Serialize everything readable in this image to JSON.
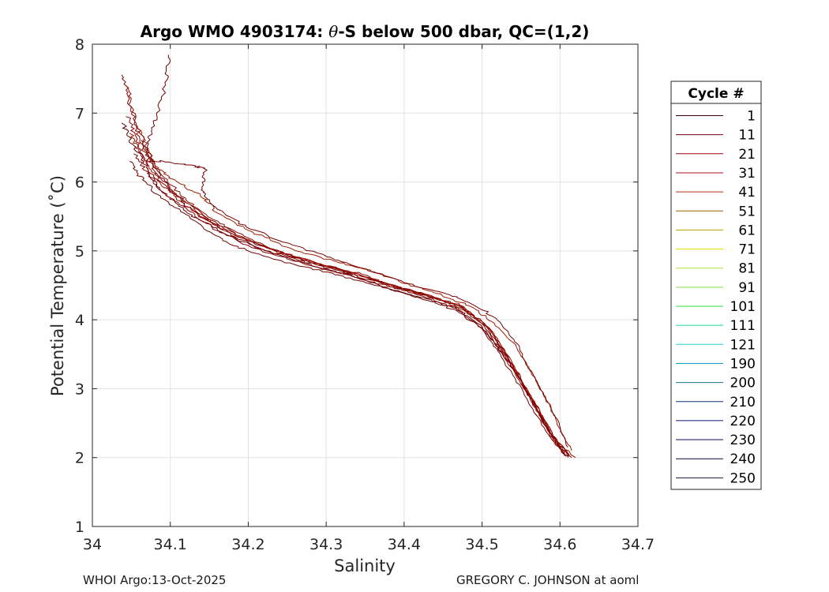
{
  "chart_data": {
    "type": "line",
    "title_prefix": "Argo WMO 4903174: ",
    "title_symbol": "θ",
    "title_suffix": "-S below 500 dbar,  QC=(1,2)",
    "xlabel": "Salinity",
    "ylabel": "Potential Temperature (˚C)",
    "xlim": [
      34.0,
      34.7
    ],
    "ylim": [
      1,
      8
    ],
    "x_ticks": [
      34.0,
      34.1,
      34.2,
      34.3,
      34.4,
      34.5,
      34.6,
      34.7
    ],
    "x_tick_labels": [
      "34",
      "34.1",
      "34.2",
      "34.3",
      "34.4",
      "34.5",
      "34.6",
      "34.7"
    ],
    "y_ticks": [
      1,
      2,
      3,
      4,
      5,
      6,
      7,
      8
    ],
    "y_tick_labels": [
      "1",
      "2",
      "3",
      "4",
      "5",
      "6",
      "7",
      "8"
    ],
    "grid": true,
    "legend_title": "Cycle #",
    "legend_position": "right",
    "series": [
      {
        "name": "1",
        "color": "#5a0008",
        "points": [
          [
            34.04,
            6.85
          ],
          [
            34.05,
            6.55
          ],
          [
            34.065,
            6.3
          ],
          [
            34.08,
            6.0
          ],
          [
            34.1,
            5.75
          ],
          [
            34.13,
            5.5
          ],
          [
            34.17,
            5.25
          ],
          [
            34.22,
            5.0
          ],
          [
            34.28,
            4.8
          ],
          [
            34.33,
            4.65
          ],
          [
            34.38,
            4.45
          ],
          [
            34.43,
            4.3
          ],
          [
            34.47,
            4.15
          ],
          [
            34.5,
            3.9
          ],
          [
            34.52,
            3.6
          ],
          [
            34.54,
            3.3
          ],
          [
            34.56,
            2.9
          ],
          [
            34.58,
            2.5
          ],
          [
            34.6,
            2.15
          ],
          [
            34.61,
            2.0
          ]
        ]
      },
      {
        "name": "11",
        "color": "#6e0008",
        "points": [
          [
            34.1,
            7.85
          ],
          [
            34.095,
            7.5
          ],
          [
            34.085,
            7.0
          ],
          [
            34.075,
            6.7
          ],
          [
            34.07,
            6.4
          ],
          [
            34.085,
            6.1
          ],
          [
            34.11,
            5.8
          ],
          [
            34.15,
            5.45
          ],
          [
            34.2,
            5.15
          ],
          [
            34.26,
            4.9
          ],
          [
            34.31,
            4.75
          ],
          [
            34.37,
            4.55
          ],
          [
            34.42,
            4.38
          ],
          [
            34.46,
            4.25
          ],
          [
            34.5,
            3.95
          ],
          [
            34.525,
            3.55
          ],
          [
            34.545,
            3.2
          ],
          [
            34.565,
            2.8
          ],
          [
            34.585,
            2.4
          ],
          [
            34.605,
            2.05
          ]
        ]
      },
      {
        "name": "21",
        "color": "#800000",
        "points": [
          [
            34.04,
            7.55
          ],
          [
            34.045,
            7.25
          ],
          [
            34.055,
            6.9
          ],
          [
            34.06,
            6.6
          ],
          [
            34.075,
            6.25
          ],
          [
            34.095,
            5.95
          ],
          [
            34.12,
            5.65
          ],
          [
            34.16,
            5.35
          ],
          [
            34.21,
            5.05
          ],
          [
            34.27,
            4.85
          ],
          [
            34.32,
            4.7
          ],
          [
            34.38,
            4.5
          ],
          [
            34.43,
            4.35
          ],
          [
            34.47,
            4.2
          ],
          [
            34.505,
            3.9
          ],
          [
            34.53,
            3.5
          ],
          [
            34.55,
            3.1
          ],
          [
            34.57,
            2.7
          ],
          [
            34.59,
            2.3
          ],
          [
            34.615,
            2.0
          ]
        ]
      },
      {
        "name": "31",
        "color": "#8b0a00",
        "points": [
          [
            34.045,
            7.4
          ],
          [
            34.05,
            7.1
          ],
          [
            34.06,
            6.75
          ],
          [
            34.07,
            6.45
          ],
          [
            34.085,
            6.15
          ],
          [
            34.11,
            5.85
          ],
          [
            34.14,
            5.55
          ],
          [
            34.18,
            5.3
          ],
          [
            34.23,
            5.02
          ],
          [
            34.29,
            4.82
          ],
          [
            34.34,
            4.68
          ],
          [
            34.39,
            4.48
          ],
          [
            34.44,
            4.32
          ],
          [
            34.475,
            4.18
          ],
          [
            34.51,
            3.88
          ],
          [
            34.532,
            3.48
          ],
          [
            34.552,
            3.08
          ],
          [
            34.572,
            2.68
          ],
          [
            34.592,
            2.28
          ],
          [
            34.612,
            2.02
          ]
        ]
      },
      {
        "name": "41",
        "color": "#941400",
        "points": [
          [
            34.05,
            6.7
          ],
          [
            34.06,
            6.45
          ],
          [
            34.075,
            6.2
          ],
          [
            34.09,
            5.95
          ],
          [
            34.12,
            5.7
          ],
          [
            34.15,
            5.45
          ],
          [
            34.19,
            5.2
          ],
          [
            34.24,
            4.98
          ],
          [
            34.3,
            4.78
          ],
          [
            34.35,
            4.62
          ],
          [
            34.4,
            4.45
          ],
          [
            34.445,
            4.3
          ],
          [
            34.48,
            4.12
          ],
          [
            34.512,
            3.85
          ],
          [
            34.535,
            3.45
          ],
          [
            34.555,
            3.05
          ],
          [
            34.575,
            2.65
          ],
          [
            34.595,
            2.25
          ],
          [
            34.62,
            2.0
          ]
        ]
      },
      {
        "name": "51",
        "color": "#9b1e00",
        "points": [
          [
            34.06,
            6.8
          ],
          [
            34.07,
            6.5
          ],
          [
            34.08,
            6.25
          ],
          [
            34.1,
            6.05
          ],
          [
            34.14,
            5.8
          ],
          [
            34.16,
            5.55
          ],
          [
            34.2,
            5.3
          ],
          [
            34.25,
            5.05
          ],
          [
            34.31,
            4.85
          ],
          [
            34.36,
            4.7
          ],
          [
            34.41,
            4.5
          ],
          [
            34.45,
            4.35
          ],
          [
            34.485,
            4.2
          ],
          [
            34.515,
            3.95
          ],
          [
            34.545,
            3.6
          ],
          [
            34.565,
            3.2
          ],
          [
            34.585,
            2.8
          ],
          [
            34.6,
            2.4
          ],
          [
            34.615,
            2.1
          ]
        ]
      },
      {
        "name": "61",
        "color": "#7a0000",
        "points": [
          [
            34.065,
            6.6
          ],
          [
            34.075,
            6.3
          ],
          [
            34.09,
            6.3
          ],
          [
            34.12,
            6.25
          ],
          [
            34.145,
            6.2
          ],
          [
            34.14,
            5.9
          ],
          [
            34.15,
            5.7
          ],
          [
            34.19,
            5.4
          ],
          [
            34.24,
            5.15
          ],
          [
            34.3,
            4.92
          ],
          [
            34.355,
            4.72
          ],
          [
            34.405,
            4.52
          ],
          [
            34.455,
            4.38
          ],
          [
            34.49,
            4.22
          ],
          [
            34.52,
            4.0
          ],
          [
            34.545,
            3.65
          ],
          [
            34.56,
            3.3
          ],
          [
            34.58,
            2.9
          ],
          [
            34.598,
            2.5
          ],
          [
            34.61,
            2.15
          ]
        ]
      },
      {
        "name": "71",
        "color": "#700000",
        "points": [
          [
            34.05,
            6.3
          ],
          [
            34.06,
            6.1
          ],
          [
            34.08,
            5.85
          ],
          [
            34.11,
            5.6
          ],
          [
            34.14,
            5.35
          ],
          [
            34.175,
            5.1
          ],
          [
            34.22,
            4.92
          ],
          [
            34.28,
            4.75
          ],
          [
            34.33,
            4.6
          ],
          [
            34.38,
            4.45
          ],
          [
            34.425,
            4.3
          ],
          [
            34.465,
            4.15
          ],
          [
            34.5,
            3.88
          ],
          [
            34.522,
            3.5
          ],
          [
            34.545,
            3.1
          ],
          [
            34.565,
            2.7
          ],
          [
            34.59,
            2.25
          ],
          [
            34.608,
            2.02
          ]
        ]
      },
      {
        "name": "81",
        "color": "#850000",
        "points": [
          [
            34.055,
            6.4
          ],
          [
            34.07,
            6.15
          ],
          [
            34.085,
            5.9
          ],
          [
            34.115,
            5.65
          ],
          [
            34.145,
            5.4
          ],
          [
            34.185,
            5.15
          ],
          [
            34.23,
            4.95
          ],
          [
            34.285,
            4.77
          ],
          [
            34.335,
            4.62
          ],
          [
            34.385,
            4.47
          ],
          [
            34.43,
            4.32
          ],
          [
            34.468,
            4.17
          ],
          [
            34.502,
            3.86
          ],
          [
            34.525,
            3.52
          ],
          [
            34.548,
            3.12
          ],
          [
            34.568,
            2.72
          ],
          [
            34.588,
            2.32
          ],
          [
            34.606,
            2.05
          ]
        ]
      },
      {
        "name": "91",
        "color": "#900000",
        "points": [
          [
            34.045,
            6.95
          ],
          [
            34.055,
            6.65
          ],
          [
            34.065,
            6.35
          ],
          [
            34.078,
            6.08
          ],
          [
            34.105,
            5.8
          ],
          [
            34.135,
            5.52
          ],
          [
            34.175,
            5.28
          ],
          [
            34.225,
            5.04
          ],
          [
            34.282,
            4.84
          ],
          [
            34.332,
            4.69
          ],
          [
            34.382,
            4.51
          ],
          [
            34.432,
            4.36
          ],
          [
            34.472,
            4.21
          ],
          [
            34.506,
            3.92
          ],
          [
            34.528,
            3.54
          ],
          [
            34.55,
            3.14
          ],
          [
            34.57,
            2.74
          ],
          [
            34.592,
            2.32
          ],
          [
            34.612,
            2.04
          ]
        ]
      }
    ]
  },
  "legend": {
    "title": "Cycle #",
    "entries": [
      {
        "label": "1",
        "color": "#3b0010"
      },
      {
        "label": "11",
        "color": "#7a0010"
      },
      {
        "label": "21",
        "color": "#a00018"
      },
      {
        "label": "31",
        "color": "#b01020"
      },
      {
        "label": "41",
        "color": "#b03010"
      },
      {
        "label": "51",
        "color": "#a06000"
      },
      {
        "label": "61",
        "color": "#b8a000"
      },
      {
        "label": "71",
        "color": "#e8e000"
      },
      {
        "label": "81",
        "color": "#b8e040"
      },
      {
        "label": "91",
        "color": "#80e040"
      },
      {
        "label": "101",
        "color": "#30e040"
      },
      {
        "label": "111",
        "color": "#20d8a0"
      },
      {
        "label": "121",
        "color": "#20d0d0"
      },
      {
        "label": "190",
        "color": "#10a0c0"
      },
      {
        "label": "200",
        "color": "#107090"
      },
      {
        "label": "210",
        "color": "#103080"
      },
      {
        "label": "220",
        "color": "#101870"
      },
      {
        "label": "230",
        "color": "#0c0c50"
      },
      {
        "label": "240",
        "color": "#0a0a38"
      },
      {
        "label": "250",
        "color": "#14143a"
      }
    ]
  },
  "footer": {
    "left": "WHOI Argo:13-Oct-2025",
    "right": "GREGORY C. JOHNSON at aoml"
  }
}
